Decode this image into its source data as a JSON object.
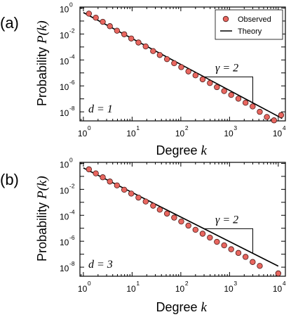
{
  "chart_data": [
    {
      "type": "scatter",
      "panel_label": "(a)",
      "xlabel": "Degree",
      "xlabel_var": "k",
      "ylabel": "Probability",
      "ylabel_var": "P(k)",
      "x_scale": "log",
      "y_scale": "log",
      "xlim": [
        0.85,
        14000
      ],
      "ylim": [
        2e-09,
        1.2
      ],
      "x_ticks": [
        {
          "base": "10",
          "exp": "0"
        },
        {
          "base": "10",
          "exp": "1"
        },
        {
          "base": "10",
          "exp": "2"
        },
        {
          "base": "10",
          "exp": "3"
        },
        {
          "base": "10",
          "exp": "4"
        }
      ],
      "y_ticks": [
        {
          "base": "10",
          "exp": "0"
        },
        {
          "base": "10",
          "exp": "-2"
        },
        {
          "base": "10",
          "exp": "-4"
        },
        {
          "base": "10",
          "exp": "-6"
        },
        {
          "base": "10",
          "exp": "-8"
        }
      ],
      "legend": {
        "position": "top-right",
        "entries": [
          "Observed",
          "Theory"
        ]
      },
      "annotation_var": "d",
      "annotation_value": "1",
      "slope_var": "γ",
      "slope_value": "2",
      "series": [
        {
          "name": "Observed",
          "x": [
            1.3,
            1.8,
            2.5,
            3.5,
            4.9,
            6.9,
            9.6,
            13.5,
            19,
            27,
            37,
            52,
            73,
            102,
            143,
            200,
            280,
            395,
            550,
            775,
            1080,
            1520,
            2130,
            2980,
            4170,
            5840,
            8180,
            11450
          ],
          "y": [
            0.37,
            0.18,
            0.087,
            0.04,
            0.018,
            0.0095,
            0.0045,
            0.0022,
            0.0011,
            0.00048,
            0.00024,
            0.000115,
            5.6e-05,
            2.8e-05,
            1.3e-05,
            6.5e-06,
            3.2e-06,
            1.65e-06,
            8e-07,
            4e-07,
            2e-07,
            1.03e-07,
            5e-08,
            2.6e-08,
            1e-08,
            4e-09,
            2.2e-09,
            5.6e-09
          ]
        },
        {
          "name": "Theory",
          "x": [
            1.0,
            12000
          ],
          "y": [
            0.45,
            3.1e-09
          ]
        }
      ]
    },
    {
      "type": "scatter",
      "panel_label": "(b)",
      "xlabel": "Degree",
      "xlabel_var": "k",
      "ylabel": "Probability",
      "ylabel_var": "P(k)",
      "x_scale": "log",
      "y_scale": "log",
      "xlim": [
        0.85,
        14000
      ],
      "ylim": [
        2e-09,
        1.2
      ],
      "x_ticks": [
        {
          "base": "10",
          "exp": "0"
        },
        {
          "base": "10",
          "exp": "1"
        },
        {
          "base": "10",
          "exp": "2"
        },
        {
          "base": "10",
          "exp": "3"
        },
        {
          "base": "10",
          "exp": "4"
        }
      ],
      "y_ticks": [
        {
          "base": "10",
          "exp": "0"
        },
        {
          "base": "10",
          "exp": "-2"
        },
        {
          "base": "10",
          "exp": "-4"
        },
        {
          "base": "10",
          "exp": "-6"
        },
        {
          "base": "10",
          "exp": "-8"
        }
      ],
      "annotation_var": "d",
      "annotation_value": "3",
      "slope_var": "γ",
      "slope_value": "2",
      "series": [
        {
          "name": "Observed",
          "x": [
            1.3,
            1.8,
            2.5,
            3.5,
            4.9,
            6.9,
            9.6,
            13.5,
            19,
            27,
            37,
            52,
            73,
            102,
            143,
            200,
            280,
            395,
            550,
            775,
            1080,
            1520,
            2130,
            2980,
            4170,
            10000
          ],
          "y": [
            0.35,
            0.17,
            0.085,
            0.04,
            0.02,
            0.0093,
            0.0047,
            0.0023,
            0.00115,
            0.00055,
            0.00027,
            0.000135,
            6.6e-05,
            3.3e-05,
            1.6e-05,
            7.6e-06,
            3.8e-06,
            1.9e-06,
            9e-07,
            4.8e-07,
            2.4e-07,
            1.25e-07,
            6.2e-08,
            2.5e-08,
            1.25e-08,
            3.3e-09
          ]
        },
        {
          "name": "Theory",
          "x": [
            1.0,
            10000
          ],
          "y": [
            0.45,
            1.2e-08
          ]
        }
      ]
    }
  ],
  "colors": {
    "marker_fill": "#e8665f",
    "marker_edge": "#4a1a18",
    "line": "#000000"
  }
}
